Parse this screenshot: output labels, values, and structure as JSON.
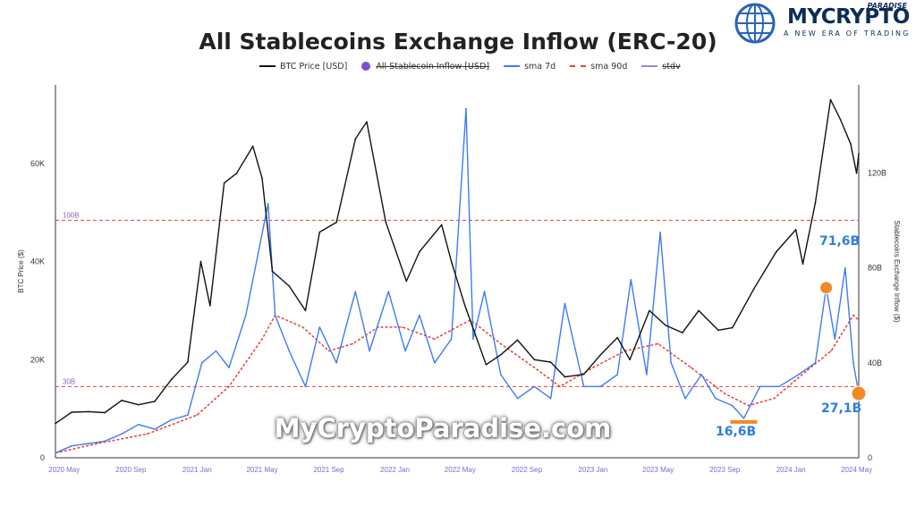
{
  "brand": {
    "name": "MYCRYPTO",
    "suffix": "PARADISE",
    "tagline": "A NEW ERA OF TRADING",
    "watermark": "MyCryptoParadise.com"
  },
  "legend": [
    {
      "label": "BTC Price [USD]",
      "kind": "line",
      "color": "#111111",
      "struck": false
    },
    {
      "label": "All Stablecoin Inflow [USD]",
      "kind": "dot",
      "color": "#7b4fd6",
      "struck": true
    },
    {
      "label": "sma 7d",
      "kind": "line",
      "color": "#3d7bf5",
      "struck": false
    },
    {
      "label": "sma 90d",
      "kind": "dash",
      "color": "#e8403a",
      "struck": false
    },
    {
      "label": "stdv",
      "kind": "line",
      "color": "#9a85e0",
      "struck": true
    }
  ],
  "annotations": {
    "peak": "71,6B",
    "low": "16,6B",
    "latest": "27,1B"
  },
  "chart_data": {
    "type": "line",
    "title": "All Stablecoins Exchange Inflow (ERC-20)",
    "x_ticks": [
      "2020 May",
      "2020 Sep",
      "2021 Jan",
      "2021 May",
      "2021 Sep",
      "2022 Jan",
      "2022 May",
      "2022 Sep",
      "2023 Jan",
      "2023 May",
      "2023 Sep",
      "2024 Jan",
      "2024 May"
    ],
    "x_range": [
      "2020-04-15",
      "2024-05-05"
    ],
    "y_left": {
      "label": "BTC Price ($)",
      "ticks": [
        "0",
        "20K",
        "40K",
        "60K"
      ],
      "range": [
        0,
        76000
      ]
    },
    "y_right": {
      "label": "Stablecoins Exchange Inflow ($)",
      "ticks": [
        "0",
        "40B",
        "80B",
        "120B"
      ],
      "range": [
        0,
        157000000000
      ]
    },
    "reference_lines": [
      {
        "label": "100B",
        "value": 100000000000
      },
      {
        "label": "30B",
        "value": 30000000000
      }
    ],
    "grid": false,
    "series": [
      {
        "name": "BTC Price [USD]",
        "axis": "left",
        "color": "#111111",
        "points": [
          [
            "2020-04-15",
            7000
          ],
          [
            "2020-05-15",
            9300
          ],
          [
            "2020-06-15",
            9400
          ],
          [
            "2020-07-15",
            9200
          ],
          [
            "2020-08-15",
            11700
          ],
          [
            "2020-09-15",
            10800
          ],
          [
            "2020-10-15",
            11500
          ],
          [
            "2020-11-15",
            16000
          ],
          [
            "2020-12-15",
            19500
          ],
          [
            "2021-01-08",
            40000
          ],
          [
            "2021-01-25",
            31000
          ],
          [
            "2021-02-20",
            56000
          ],
          [
            "2021-03-15",
            58000
          ],
          [
            "2021-04-14",
            63500
          ],
          [
            "2021-05-01",
            57000
          ],
          [
            "2021-05-20",
            38000
          ],
          [
            "2021-06-20",
            35000
          ],
          [
            "2021-07-20",
            30000
          ],
          [
            "2021-08-15",
            46000
          ],
          [
            "2021-09-15",
            48000
          ],
          [
            "2021-10-20",
            65000
          ],
          [
            "2021-11-10",
            68500
          ],
          [
            "2021-12-15",
            48000
          ],
          [
            "2022-01-22",
            36000
          ],
          [
            "2022-02-15",
            42000
          ],
          [
            "2022-03-28",
            47500
          ],
          [
            "2022-04-15",
            40000
          ],
          [
            "2022-05-10",
            31000
          ],
          [
            "2022-06-18",
            19000
          ],
          [
            "2022-07-15",
            21000
          ],
          [
            "2022-08-15",
            24000
          ],
          [
            "2022-09-15",
            20000
          ],
          [
            "2022-10-15",
            19500
          ],
          [
            "2022-11-10",
            16500
          ],
          [
            "2022-12-15",
            17000
          ],
          [
            "2023-01-15",
            21000
          ],
          [
            "2023-02-15",
            24500
          ],
          [
            "2023-03-10",
            20000
          ],
          [
            "2023-04-15",
            30000
          ],
          [
            "2023-05-15",
            27000
          ],
          [
            "2023-06-15",
            25500
          ],
          [
            "2023-07-15",
            30000
          ],
          [
            "2023-08-20",
            26000
          ],
          [
            "2023-09-15",
            26500
          ],
          [
            "2023-10-25",
            34500
          ],
          [
            "2023-12-05",
            42000
          ],
          [
            "2024-01-10",
            46500
          ],
          [
            "2024-01-23",
            39500
          ],
          [
            "2024-02-15",
            52000
          ],
          [
            "2024-03-14",
            73000
          ],
          [
            "2024-04-01",
            69000
          ],
          [
            "2024-04-20",
            64000
          ],
          [
            "2024-05-01",
            58000
          ],
          [
            "2024-05-05",
            62000
          ]
        ]
      },
      {
        "name": "sma 7d",
        "axis": "right",
        "color": "#3d7bf5",
        "points": [
          [
            "2020-04-15",
            2000000000
          ],
          [
            "2020-05-15",
            5000000000
          ],
          [
            "2020-06-15",
            6000000000
          ],
          [
            "2020-07-15",
            7000000000
          ],
          [
            "2020-08-15",
            10000000000
          ],
          [
            "2020-09-15",
            14000000000
          ],
          [
            "2020-10-15",
            12000000000
          ],
          [
            "2020-11-15",
            16000000000
          ],
          [
            "2020-12-15",
            18000000000
          ],
          [
            "2021-01-10",
            40000000000
          ],
          [
            "2021-02-05",
            45000000000
          ],
          [
            "2021-03-01",
            38000000000
          ],
          [
            "2021-04-01",
            60000000000
          ],
          [
            "2021-05-12",
            107000000000
          ],
          [
            "2021-05-25",
            60000000000
          ],
          [
            "2021-06-20",
            45000000000
          ],
          [
            "2021-07-20",
            30000000000
          ],
          [
            "2021-08-15",
            55000000000
          ],
          [
            "2021-09-15",
            40000000000
          ],
          [
            "2021-10-20",
            70000000000
          ],
          [
            "2021-11-15",
            45000000000
          ],
          [
            "2021-12-20",
            70000000000
          ],
          [
            "2022-01-20",
            45000000000
          ],
          [
            "2022-02-15",
            60000000000
          ],
          [
            "2022-03-15",
            40000000000
          ],
          [
            "2022-04-15",
            50000000000
          ],
          [
            "2022-05-12",
            147000000000
          ],
          [
            "2022-05-25",
            50000000000
          ],
          [
            "2022-06-15",
            70000000000
          ],
          [
            "2022-07-15",
            35000000000
          ],
          [
            "2022-08-15",
            25000000000
          ],
          [
            "2022-09-15",
            30000000000
          ],
          [
            "2022-10-15",
            25000000000
          ],
          [
            "2022-11-10",
            65000000000
          ],
          [
            "2022-12-15",
            30000000000
          ],
          [
            "2023-01-15",
            30000000000
          ],
          [
            "2023-02-15",
            35000000000
          ],
          [
            "2023-03-12",
            75000000000
          ],
          [
            "2023-04-10",
            35000000000
          ],
          [
            "2023-05-05",
            95000000000
          ],
          [
            "2023-05-25",
            40000000000
          ],
          [
            "2023-06-20",
            25000000000
          ],
          [
            "2023-07-20",
            35000000000
          ],
          [
            "2023-08-15",
            25000000000
          ],
          [
            "2023-09-15",
            22000000000
          ],
          [
            "2023-10-06",
            16600000000
          ],
          [
            "2023-11-05",
            30000000000
          ],
          [
            "2023-12-10",
            30000000000
          ],
          [
            "2024-01-15",
            35000000000
          ],
          [
            "2024-02-15",
            40000000000
          ],
          [
            "2024-03-06",
            71600000000
          ],
          [
            "2024-03-22",
            50000000000
          ],
          [
            "2024-04-10",
            80000000000
          ],
          [
            "2024-04-25",
            40000000000
          ],
          [
            "2024-05-05",
            27100000000
          ]
        ]
      },
      {
        "name": "sma 90d",
        "axis": "right",
        "color": "#e8403a",
        "points": [
          [
            "2020-04-15",
            2000000000
          ],
          [
            "2020-07-01",
            6000000000
          ],
          [
            "2020-10-01",
            10000000000
          ],
          [
            "2021-01-01",
            18000000000
          ],
          [
            "2021-03-01",
            30000000000
          ],
          [
            "2021-05-01",
            50000000000
          ],
          [
            "2021-05-25",
            60000000000
          ],
          [
            "2021-07-15",
            55000000000
          ],
          [
            "2021-09-01",
            45000000000
          ],
          [
            "2021-10-15",
            48000000000
          ],
          [
            "2021-12-01",
            55000000000
          ],
          [
            "2022-01-15",
            55000000000
          ],
          [
            "2022-03-15",
            50000000000
          ],
          [
            "2022-05-20",
            58000000000
          ],
          [
            "2022-07-15",
            48000000000
          ],
          [
            "2022-09-15",
            38000000000
          ],
          [
            "2022-11-01",
            30000000000
          ],
          [
            "2023-01-01",
            38000000000
          ],
          [
            "2023-03-01",
            45000000000
          ],
          [
            "2023-05-01",
            48000000000
          ],
          [
            "2023-07-01",
            38000000000
          ],
          [
            "2023-09-01",
            27000000000
          ],
          [
            "2023-10-15",
            22000000000
          ],
          [
            "2023-12-01",
            25000000000
          ],
          [
            "2024-02-01",
            37000000000
          ],
          [
            "2024-03-15",
            45000000000
          ],
          [
            "2024-04-25",
            60000000000
          ],
          [
            "2024-05-05",
            58000000000
          ]
        ]
      }
    ]
  }
}
